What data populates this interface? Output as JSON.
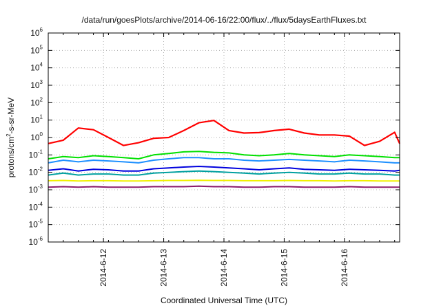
{
  "chart_data": {
    "type": "line",
    "title": "/data/run/goesPlots/archive/2014-06-16/22:00/flux/../flux/5daysEarthFluxes.txt",
    "xlabel": "Coordinated Universal Time (UTC)",
    "ylabel": "protons/cm2-s-sr-MeV",
    "y_scale": "log",
    "ylim": [
      1e-06,
      1000000
    ],
    "y_ticks": [
      1e-06,
      1e-05,
      0.0001,
      0.001,
      0.01,
      0.1,
      1,
      10,
      100,
      1000,
      10000,
      100000,
      1000000
    ],
    "y_tick_labels": [
      {
        "base": "10",
        "exp": "-6"
      },
      {
        "base": "10",
        "exp": "-5"
      },
      {
        "base": "10",
        "exp": "-4"
      },
      {
        "base": "10",
        "exp": "-3"
      },
      {
        "base": "10",
        "exp": "-2"
      },
      {
        "base": "10",
        "exp": "-1"
      },
      {
        "base": "10",
        "exp": "0"
      },
      {
        "base": "10",
        "exp": "1"
      },
      {
        "base": "10",
        "exp": "2"
      },
      {
        "base": "10",
        "exp": "3"
      },
      {
        "base": "10",
        "exp": "4"
      },
      {
        "base": "10",
        "exp": "5"
      },
      {
        "base": "10",
        "exp": "6"
      }
    ],
    "xlim": [
      "2014-06-11 02:00",
      "2014-06-16 22:00"
    ],
    "x_ticks": [
      "2014-06-12",
      "2014-06-13",
      "2014-06-14",
      "2014-06-15",
      "2014-06-16"
    ],
    "x_tick_labels": [
      "2014-6-12",
      "2014-6-13",
      "2014-6-14",
      "2014-6-15",
      "2014-6-16"
    ],
    "grid": true,
    "x": [
      "2014-06-11 02:00",
      "2014-06-11 08:00",
      "2014-06-11 14:00",
      "2014-06-11 20:00",
      "2014-06-12 02:00",
      "2014-06-12 08:00",
      "2014-06-12 14:00",
      "2014-06-12 20:00",
      "2014-06-13 02:00",
      "2014-06-13 08:00",
      "2014-06-13 14:00",
      "2014-06-13 20:00",
      "2014-06-14 02:00",
      "2014-06-14 08:00",
      "2014-06-14 14:00",
      "2014-06-14 20:00",
      "2014-06-15 02:00",
      "2014-06-15 08:00",
      "2014-06-15 14:00",
      "2014-06-15 20:00",
      "2014-06-16 02:00",
      "2014-06-16 08:00",
      "2014-06-16 14:00",
      "2014-06-16 20:00",
      "2014-06-16 22:00"
    ],
    "series": [
      {
        "color": "#ff0000",
        "values": [
          0.45,
          0.7,
          3.5,
          2.8,
          1.0,
          0.35,
          0.5,
          0.9,
          1.0,
          2.5,
          7.0,
          9.5,
          2.5,
          1.8,
          1.9,
          2.5,
          3.0,
          1.8,
          1.4,
          1.4,
          1.2,
          0.35,
          0.6,
          2.0,
          0.45
        ]
      },
      {
        "color": "#00e000",
        "values": [
          0.06,
          0.08,
          0.07,
          0.09,
          0.08,
          0.07,
          0.06,
          0.1,
          0.12,
          0.15,
          0.16,
          0.14,
          0.13,
          0.1,
          0.09,
          0.1,
          0.12,
          0.1,
          0.09,
          0.08,
          0.1,
          0.09,
          0.08,
          0.07,
          0.07
        ]
      },
      {
        "color": "#1e90ff",
        "values": [
          0.035,
          0.05,
          0.04,
          0.05,
          0.045,
          0.04,
          0.035,
          0.05,
          0.06,
          0.07,
          0.07,
          0.06,
          0.06,
          0.05,
          0.045,
          0.05,
          0.055,
          0.05,
          0.045,
          0.04,
          0.05,
          0.045,
          0.04,
          0.035,
          0.035
        ]
      },
      {
        "color": "#0000dd",
        "values": [
          0.013,
          0.016,
          0.012,
          0.015,
          0.014,
          0.012,
          0.012,
          0.016,
          0.018,
          0.02,
          0.022,
          0.02,
          0.018,
          0.016,
          0.014,
          0.016,
          0.018,
          0.015,
          0.014,
          0.013,
          0.015,
          0.014,
          0.013,
          0.012,
          0.013
        ]
      },
      {
        "color": "#00a0a0",
        "values": [
          0.007,
          0.009,
          0.007,
          0.008,
          0.008,
          0.007,
          0.007,
          0.009,
          0.01,
          0.011,
          0.012,
          0.011,
          0.01,
          0.009,
          0.008,
          0.009,
          0.01,
          0.009,
          0.008,
          0.008,
          0.009,
          0.008,
          0.008,
          0.007,
          0.007
        ]
      },
      {
        "color": "#f0f000",
        "values": [
          0.0033,
          0.0034,
          0.0032,
          0.0033,
          0.0033,
          0.0032,
          0.0032,
          0.0033,
          0.0034,
          0.0034,
          0.0035,
          0.0034,
          0.0034,
          0.0033,
          0.0033,
          0.0033,
          0.0034,
          0.0033,
          0.0033,
          0.0032,
          0.0033,
          0.0033,
          0.0032,
          0.0032,
          0.0032
        ]
      },
      {
        "color": "#8b1a6b",
        "values": [
          0.0014,
          0.0015,
          0.0014,
          0.0015,
          0.0014,
          0.0014,
          0.0014,
          0.0015,
          0.0015,
          0.0015,
          0.0016,
          0.0015,
          0.0015,
          0.0014,
          0.0014,
          0.0015,
          0.0015,
          0.0014,
          0.0014,
          0.0014,
          0.0015,
          0.0014,
          0.0014,
          0.0014,
          0.0014
        ]
      }
    ]
  }
}
